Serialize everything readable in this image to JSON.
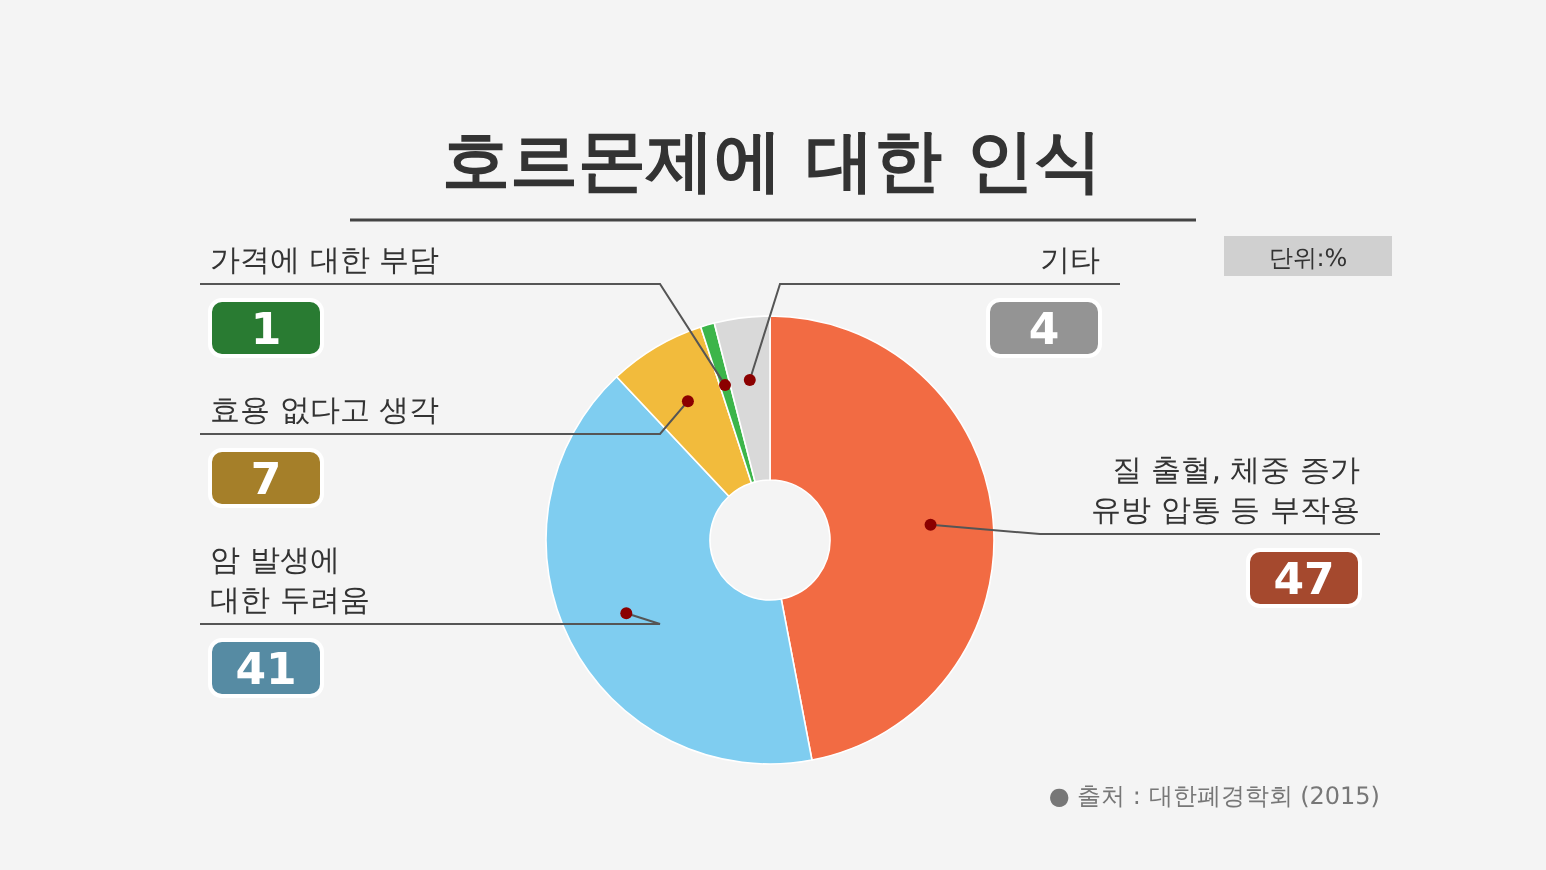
{
  "chart_data": {
    "type": "donut",
    "title": "호르몬제에 대한 인식",
    "categories": [
      "질 출혈, 체중 증가\n유방 압통 등 부작용",
      "암 발생에\n대한 두려움",
      "효용 없다고 생각",
      "가격에 대한 부담",
      "기타"
    ],
    "values": [
      47,
      41,
      7,
      1,
      4
    ],
    "colors": [
      "#f26b43",
      "#7fcdf0",
      "#f2bb3c",
      "#3cb54a",
      "#d9d9d9"
    ],
    "data_labels": true,
    "annotations": [
      "단위:%",
      "● 출처 : 대한폐경학회 (2015)"
    ]
  }
}
